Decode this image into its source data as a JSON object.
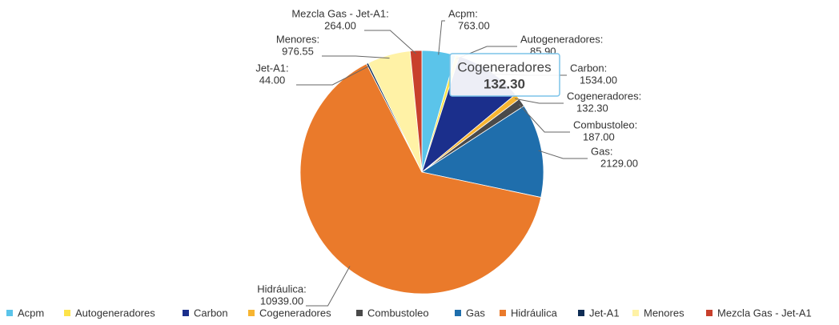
{
  "chart_data": {
    "type": "pie",
    "categories": [
      "Acpm",
      "Autogeneradores",
      "Carbon",
      "Cogeneradores",
      "Combustoleo",
      "Gas",
      "Hidráulica",
      "Jet-A1",
      "Menores",
      "Mezcla Gas - Jet-A1"
    ],
    "values": [
      763,
      85.9,
      1534,
      132.3,
      187,
      2129,
      10939,
      44,
      976.55,
      264
    ],
    "value_labels": [
      "763.00",
      "85.90",
      "1534.00",
      "132.30",
      "187.00",
      "2129.00",
      "10939.00",
      "44.00",
      "976.55",
      "264.00"
    ],
    "label_names": [
      "Acpm:",
      "Autogeneradores:",
      "Carbon:",
      "Cogeneradores:",
      "Combustoleo:",
      "Gas:",
      "Hidráulica:",
      "Jet-A1:",
      "Menores:",
      "Mezcla Gas - Jet-A1:"
    ],
    "colors": [
      "#5bc4ea",
      "#fde34a",
      "#1b2f8c",
      "#f7b531",
      "#4a4a4a",
      "#1f6eac",
      "#ea7a2b",
      "#0f2d55",
      "#fff2a6",
      "#c8402c"
    ],
    "legend": "bottom",
    "tooltip": {
      "category": "Cogeneradores",
      "value_label": "132.30"
    }
  }
}
